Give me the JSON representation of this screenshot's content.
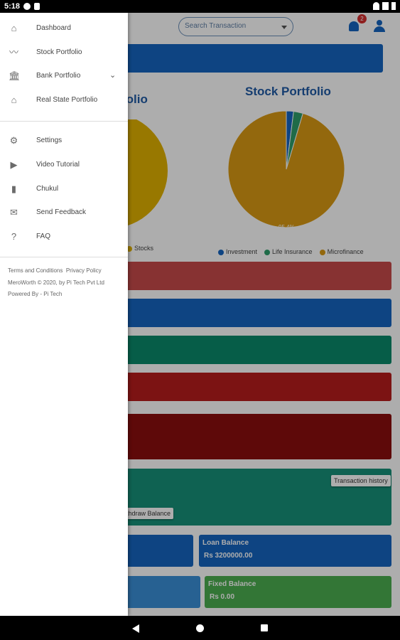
{
  "status_bar": {
    "time": "5:18"
  },
  "app_bar": {
    "search_placeholder": "Search Transaction",
    "notification_count": "2"
  },
  "charts": {
    "left_title_partial": "folio",
    "left_legend_partial": "Stocks",
    "stock_portfolio_title": "Stock Portfolio"
  },
  "chart_data": {
    "type": "pie",
    "title": "Stock Portfolio",
    "labels": [
      "Investment",
      "Life Insurance",
      "Microfinance"
    ],
    "values": [
      2.0,
      2.6,
      95.4
    ],
    "colors": [
      "#1565c0",
      "#2e9e6b",
      "#d99a14"
    ],
    "data_label": "95.4%",
    "legend_position": "bottom"
  },
  "cards": {
    "transaction_history_label": "Transaction history",
    "withdraw_partial": "ithdraw Balance",
    "loan_balance_label": "Loan Balance",
    "loan_balance_value": "Rs 3200000.00",
    "fixed_balance_label": "Fixed Balance",
    "fixed_balance_value": "Rs 0.00"
  },
  "drawer": {
    "items": [
      {
        "label": "Dashboard",
        "icon": "home-icon"
      },
      {
        "label": "Stock Portfolio",
        "icon": "stock-trend-icon"
      },
      {
        "label": "Bank Portfolio",
        "icon": "bank-icon"
      },
      {
        "label": "Real State Portfolio",
        "icon": "house-icon"
      }
    ],
    "items2": [
      {
        "label": "Settings",
        "icon": "gear-icon"
      },
      {
        "label": "Video Tutorial",
        "icon": "video-icon"
      },
      {
        "label": "Chukul",
        "icon": "building-icon"
      },
      {
        "label": "Send Feedback",
        "icon": "feedback-icon"
      },
      {
        "label": "FAQ",
        "icon": "help-icon"
      }
    ],
    "footer": {
      "terms": "Terms and Conditions",
      "privacy": "Privacy Policy",
      "copyright": "MeroWorth © 2020, by Pi Tech Pvt Ltd",
      "powered": "Powered By - Pi Tech"
    }
  }
}
